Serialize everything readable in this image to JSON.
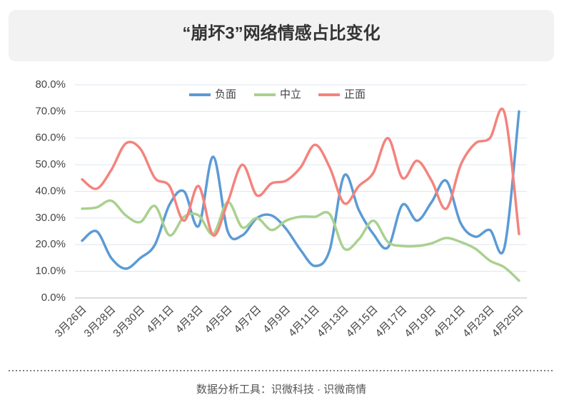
{
  "chart_data": {
    "type": "line",
    "title": "“崩坏3”网络情感占比变化",
    "categories": [
      "3月26日",
      null,
      "3月28日",
      null,
      "3月30日",
      null,
      "4月1日",
      null,
      "4月3日",
      null,
      "4月5日",
      null,
      "4月7日",
      null,
      "4月9日",
      null,
      "4月11日",
      null,
      "4月13日",
      null,
      "4月15日",
      null,
      "4月17日",
      null,
      "4月19日",
      null,
      "4月21日",
      null,
      "4月23日",
      null,
      "4月25日"
    ],
    "series": [
      {
        "name": "负面",
        "color": "#5b9bd5",
        "values": [
          21.5,
          25,
          15,
          11,
          15,
          20,
          35,
          40,
          27,
          53,
          25,
          23.5,
          30,
          31,
          26,
          18,
          12,
          18,
          46,
          33,
          24,
          19,
          35,
          29,
          36,
          44,
          28,
          23,
          25.5,
          19,
          70
        ]
      },
      {
        "name": "中立",
        "color": "#a9d18e",
        "values": [
          33.5,
          34,
          36.5,
          31,
          28.5,
          34.5,
          23.5,
          30.5,
          31,
          24,
          36,
          26.5,
          30,
          25.5,
          29,
          30.5,
          30.5,
          31.5,
          18.5,
          22,
          29,
          21,
          19.5,
          19.5,
          20.5,
          22.5,
          21,
          18.5,
          14,
          11.5,
          6.5
        ]
      },
      {
        "name": "正面",
        "color": "#f4837d",
        "values": [
          44.5,
          41,
          48,
          58,
          56,
          45,
          42,
          29,
          42,
          23.5,
          36,
          50,
          38.5,
          43,
          44,
          49,
          57.5,
          49,
          35.5,
          42,
          47,
          60,
          45,
          51.5,
          44,
          33.5,
          50,
          58,
          60,
          69.5,
          24
        ]
      }
    ],
    "ylim": [
      0,
      80
    ],
    "yticks": [
      {
        "value": 0,
        "label": "0.0%"
      },
      {
        "value": 10,
        "label": "10.0%"
      },
      {
        "value": 20,
        "label": "20.0%"
      },
      {
        "value": 30,
        "label": "30.0%"
      },
      {
        "value": 40,
        "label": "40.0%"
      },
      {
        "value": 50,
        "label": "50.0%"
      },
      {
        "value": 60,
        "label": "60.0%"
      },
      {
        "value": 70,
        "label": "70.0%"
      },
      {
        "value": 80,
        "label": "80.0%"
      }
    ],
    "grid": true,
    "legend": "top"
  },
  "footer": "数据分析工具：识微科技 · 识微商情"
}
